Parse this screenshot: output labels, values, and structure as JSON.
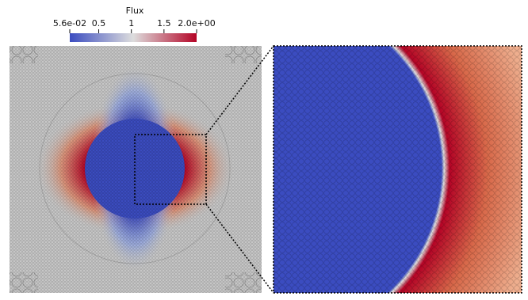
{
  "chart_data": {
    "type": "field",
    "colorbar_title": "Flux",
    "clim": [
      0.056,
      2.0
    ],
    "cticks": [
      {
        "value": 0.056,
        "label": "5.6e-02"
      },
      0.5,
      1,
      1.5,
      {
        "value": 2.0,
        "label": "2.0e+00"
      }
    ],
    "colormap": [
      "#3b4cc0",
      "#dddddd",
      "#b40426"
    ]
  }
}
